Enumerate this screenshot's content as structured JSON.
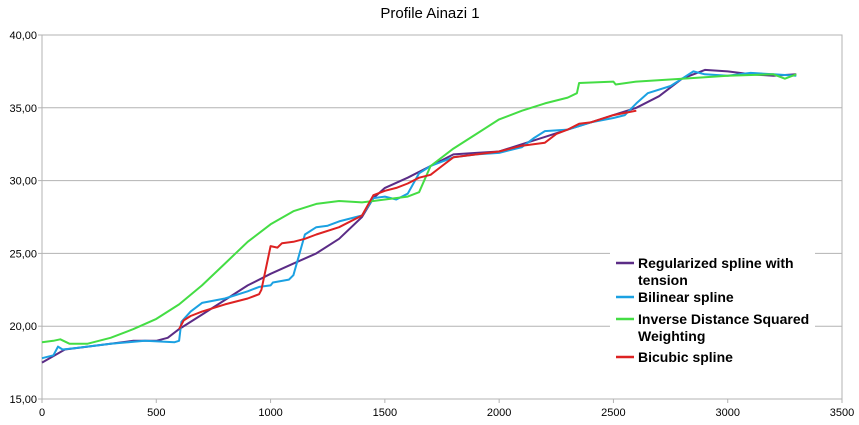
{
  "chart_data": {
    "type": "line",
    "title": "Profile Ainazi 1",
    "xlabel": "",
    "ylabel": "",
    "xlim": [
      0,
      3500
    ],
    "ylim": [
      15,
      40
    ],
    "x_ticks": [
      "0",
      "500",
      "1000",
      "1500",
      "2000",
      "2500",
      "3000",
      "3500"
    ],
    "y_ticks": [
      "15,00",
      "20,00",
      "25,00",
      "30,00",
      "35,00",
      "40,00"
    ],
    "grid": "horizontal",
    "legend_position": "right",
    "series": [
      {
        "name": "Regularized spline with tension",
        "color": "#5b2c86",
        "points": [
          [
            0,
            17.5
          ],
          [
            100,
            18.4
          ],
          [
            200,
            18.6
          ],
          [
            300,
            18.8
          ],
          [
            400,
            19.0
          ],
          [
            500,
            19.0
          ],
          [
            550,
            19.2
          ],
          [
            600,
            19.8
          ],
          [
            700,
            20.8
          ],
          [
            800,
            21.8
          ],
          [
            900,
            22.8
          ],
          [
            1000,
            23.6
          ],
          [
            1100,
            24.3
          ],
          [
            1200,
            25.0
          ],
          [
            1300,
            26.0
          ],
          [
            1400,
            27.5
          ],
          [
            1450,
            28.8
          ],
          [
            1500,
            29.5
          ],
          [
            1600,
            30.2
          ],
          [
            1700,
            31.0
          ],
          [
            1800,
            31.8
          ],
          [
            1900,
            31.9
          ],
          [
            2000,
            32.0
          ],
          [
            2100,
            32.5
          ],
          [
            2200,
            33.0
          ],
          [
            2300,
            33.5
          ],
          [
            2400,
            34.0
          ],
          [
            2500,
            34.5
          ],
          [
            2600,
            35.0
          ],
          [
            2700,
            35.8
          ],
          [
            2800,
            37.0
          ],
          [
            2900,
            37.6
          ],
          [
            3000,
            37.5
          ],
          [
            3100,
            37.3
          ],
          [
            3200,
            37.2
          ],
          [
            3300,
            37.3
          ]
        ]
      },
      {
        "name": "Bilinear spline",
        "color": "#1ba1e2",
        "points": [
          [
            0,
            17.8
          ],
          [
            50,
            18.0
          ],
          [
            70,
            18.6
          ],
          [
            90,
            18.4
          ],
          [
            150,
            18.5
          ],
          [
            300,
            18.8
          ],
          [
            450,
            19.0
          ],
          [
            580,
            18.9
          ],
          [
            600,
            19.0
          ],
          [
            610,
            20.3
          ],
          [
            650,
            21.0
          ],
          [
            700,
            21.6
          ],
          [
            800,
            21.9
          ],
          [
            900,
            22.4
          ],
          [
            950,
            22.7
          ],
          [
            1000,
            22.8
          ],
          [
            1010,
            23.0
          ],
          [
            1080,
            23.2
          ],
          [
            1100,
            23.5
          ],
          [
            1150,
            26.3
          ],
          [
            1200,
            26.8
          ],
          [
            1250,
            26.9
          ],
          [
            1300,
            27.2
          ],
          [
            1400,
            27.6
          ],
          [
            1450,
            28.8
          ],
          [
            1500,
            28.9
          ],
          [
            1550,
            28.7
          ],
          [
            1600,
            29.1
          ],
          [
            1650,
            30.5
          ],
          [
            1700,
            31.0
          ],
          [
            1800,
            31.6
          ],
          [
            1900,
            31.8
          ],
          [
            2000,
            31.9
          ],
          [
            2100,
            32.3
          ],
          [
            2150,
            32.9
          ],
          [
            2200,
            33.4
          ],
          [
            2300,
            33.5
          ],
          [
            2400,
            34.0
          ],
          [
            2500,
            34.3
          ],
          [
            2550,
            34.5
          ],
          [
            2600,
            35.3
          ],
          [
            2650,
            36.0
          ],
          [
            2750,
            36.5
          ],
          [
            2800,
            37.0
          ],
          [
            2850,
            37.5
          ],
          [
            2900,
            37.3
          ],
          [
            3000,
            37.2
          ],
          [
            3100,
            37.4
          ],
          [
            3200,
            37.3
          ],
          [
            3300,
            37.2
          ]
        ]
      },
      {
        "name": "Inverse Distance Squared Weighting",
        "color": "#44dd44",
        "points": [
          [
            0,
            18.9
          ],
          [
            50,
            19.0
          ],
          [
            80,
            19.1
          ],
          [
            120,
            18.8
          ],
          [
            200,
            18.8
          ],
          [
            300,
            19.2
          ],
          [
            400,
            19.8
          ],
          [
            500,
            20.5
          ],
          [
            600,
            21.5
          ],
          [
            700,
            22.8
          ],
          [
            800,
            24.3
          ],
          [
            900,
            25.8
          ],
          [
            1000,
            27.0
          ],
          [
            1100,
            27.9
          ],
          [
            1200,
            28.4
          ],
          [
            1300,
            28.6
          ],
          [
            1400,
            28.5
          ],
          [
            1450,
            28.6
          ],
          [
            1500,
            28.7
          ],
          [
            1600,
            28.9
          ],
          [
            1650,
            29.2
          ],
          [
            1700,
            31.0
          ],
          [
            1800,
            32.2
          ],
          [
            1900,
            33.2
          ],
          [
            2000,
            34.2
          ],
          [
            2100,
            34.8
          ],
          [
            2200,
            35.3
          ],
          [
            2300,
            35.7
          ],
          [
            2340,
            36.0
          ],
          [
            2350,
            36.7
          ],
          [
            2500,
            36.8
          ],
          [
            2510,
            36.6
          ],
          [
            2600,
            36.8
          ],
          [
            2800,
            37.0
          ],
          [
            3000,
            37.2
          ],
          [
            3200,
            37.3
          ],
          [
            3250,
            37.0
          ],
          [
            3300,
            37.3
          ]
        ]
      },
      {
        "name": "Bicubic spline",
        "color": "#dd2222",
        "points": [
          [
            600,
            19.8
          ],
          [
            620,
            20.4
          ],
          [
            650,
            20.7
          ],
          [
            700,
            21.0
          ],
          [
            800,
            21.5
          ],
          [
            900,
            21.9
          ],
          [
            950,
            22.2
          ],
          [
            960,
            22.5
          ],
          [
            1000,
            25.5
          ],
          [
            1030,
            25.4
          ],
          [
            1050,
            25.7
          ],
          [
            1100,
            25.8
          ],
          [
            1150,
            26.0
          ],
          [
            1200,
            26.3
          ],
          [
            1300,
            26.8
          ],
          [
            1400,
            27.6
          ],
          [
            1450,
            29.0
          ],
          [
            1500,
            29.3
          ],
          [
            1550,
            29.5
          ],
          [
            1600,
            29.8
          ],
          [
            1650,
            30.2
          ],
          [
            1700,
            30.4
          ],
          [
            1750,
            31.0
          ],
          [
            1800,
            31.6
          ],
          [
            1900,
            31.8
          ],
          [
            2000,
            32.0
          ],
          [
            2100,
            32.4
          ],
          [
            2200,
            32.6
          ],
          [
            2250,
            33.2
          ],
          [
            2300,
            33.5
          ],
          [
            2350,
            33.9
          ],
          [
            2400,
            34.0
          ],
          [
            2500,
            34.5
          ],
          [
            2600,
            34.8
          ]
        ]
      }
    ]
  }
}
